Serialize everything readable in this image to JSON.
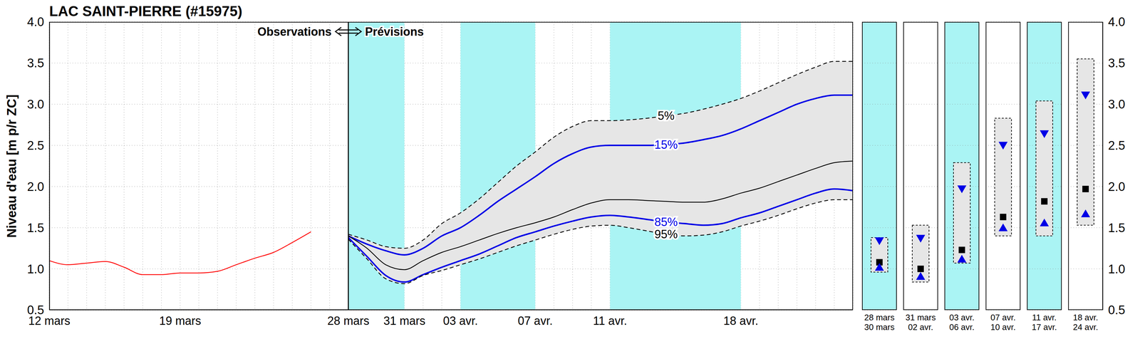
{
  "chart_data": [
    {
      "type": "line",
      "title": "LAC SAINT-PIERRE (#15975)",
      "ylabel": "Niveau d'eau [m p/r ZC]",
      "categories": [
        "12 mars",
        null,
        null,
        null,
        null,
        null,
        null,
        "19 mars",
        null,
        null,
        null,
        null,
        null,
        null,
        null,
        null,
        "28 mars",
        null,
        null,
        "31 mars",
        null,
        null,
        "03 avr.",
        null,
        null,
        null,
        "07 avr.",
        null,
        null,
        null,
        "11 avr.",
        null,
        null,
        null,
        null,
        null,
        null,
        "18 avr.",
        null,
        null,
        null,
        null,
        null,
        null
      ],
      "series": [
        {
          "color": "#ff0000",
          "line_style": "solid",
          "values": [
            1.1,
            1.05,
            1.07,
            1.09,
            1.02,
            0.93,
            0.93,
            0.95,
            0.95,
            0.97,
            1.05,
            1.13,
            1.2,
            1.32,
            1.45,
            null,
            null,
            null,
            null,
            null,
            null,
            null,
            null,
            null,
            null,
            null,
            null,
            null,
            null,
            null,
            null,
            null,
            null,
            null,
            null,
            null,
            null,
            null,
            null,
            null,
            null,
            null,
            null,
            null
          ]
        },
        {
          "name": "5%",
          "color": "#000000",
          "line_style": "dashed",
          "values": [
            null,
            null,
            null,
            null,
            null,
            null,
            null,
            null,
            null,
            null,
            null,
            null,
            null,
            null,
            null,
            null,
            1.42,
            1.35,
            1.27,
            1.25,
            1.35,
            1.55,
            1.68,
            1.85,
            2.05,
            2.25,
            2.42,
            2.6,
            2.73,
            2.8,
            2.8,
            2.81,
            2.83,
            2.86,
            2.89,
            2.94,
            3.0,
            3.07,
            3.16,
            3.26,
            3.36,
            3.45,
            3.52,
            3.52
          ]
        },
        {
          "name": "15%",
          "color": "#0000e6",
          "line_style": "solid",
          "values": [
            null,
            null,
            null,
            null,
            null,
            null,
            null,
            null,
            null,
            null,
            null,
            null,
            null,
            null,
            null,
            null,
            1.4,
            1.3,
            1.22,
            1.17,
            1.25,
            1.4,
            1.5,
            1.65,
            1.82,
            1.97,
            2.12,
            2.28,
            2.4,
            2.48,
            2.5,
            2.5,
            2.5,
            2.51,
            2.53,
            2.57,
            2.62,
            2.7,
            2.8,
            2.9,
            3.0,
            3.07,
            3.11,
            3.11
          ]
        },
        {
          "color": "#000000",
          "line_style": "solid",
          "values": [
            null,
            null,
            null,
            null,
            null,
            null,
            null,
            null,
            null,
            null,
            null,
            null,
            null,
            null,
            null,
            null,
            1.4,
            1.25,
            1.05,
            0.99,
            1.1,
            1.2,
            1.27,
            1.35,
            1.43,
            1.5,
            1.56,
            1.63,
            1.72,
            1.8,
            1.84,
            1.84,
            1.83,
            1.82,
            1.81,
            1.81,
            1.85,
            1.92,
            1.98,
            2.06,
            2.14,
            2.22,
            2.29,
            2.31
          ]
        },
        {
          "name": "85%",
          "color": "#0000e6",
          "line_style": "solid",
          "values": [
            null,
            null,
            null,
            null,
            null,
            null,
            null,
            null,
            null,
            null,
            null,
            null,
            null,
            null,
            null,
            null,
            1.38,
            1.15,
            0.92,
            0.84,
            0.93,
            1.02,
            1.1,
            1.18,
            1.28,
            1.38,
            1.45,
            1.52,
            1.58,
            1.63,
            1.65,
            1.63,
            1.6,
            1.57,
            1.55,
            1.53,
            1.55,
            1.62,
            1.68,
            1.76,
            1.84,
            1.92,
            1.97,
            1.95
          ]
        },
        {
          "name": "95%",
          "color": "#000000",
          "line_style": "dashed",
          "values": [
            null,
            null,
            null,
            null,
            null,
            null,
            null,
            null,
            null,
            null,
            null,
            null,
            null,
            null,
            null,
            null,
            1.36,
            1.12,
            0.88,
            0.82,
            0.92,
            0.98,
            1.05,
            1.12,
            1.2,
            1.28,
            1.35,
            1.42,
            1.48,
            1.52,
            1.53,
            1.5,
            1.46,
            1.42,
            1.4,
            1.41,
            1.45,
            1.52,
            1.58,
            1.65,
            1.73,
            1.8,
            1.84,
            1.84
          ]
        }
      ],
      "bands": [
        {
          "x1": "28 mars",
          "x2": "31 mars"
        },
        {
          "x1": "03 avr.",
          "x2": "07 avr."
        },
        {
          "x1": "11 avr.",
          "x2": "18 avr."
        }
      ],
      "divider": {
        "x": "28 mars",
        "labels": [
          "Observations",
          "Prévisions"
        ]
      },
      "ylim": [
        0.5,
        4
      ],
      "yticks": [
        0.5,
        {
          "value": 1,
          "label": "1.0"
        },
        1.5,
        {
          "value": 2,
          "label": "2.0"
        },
        2.5,
        {
          "value": 3,
          "label": "3.0"
        },
        3.5,
        {
          "value": 4,
          "label": "4.0"
        }
      ],
      "grid": true
    },
    {
      "type": "range",
      "categories": [
        "28 mars\n30 mars",
        "31 mars\n02 avr.",
        "03 avr.\n06 avr.",
        "07 avr.\n10 avr.",
        "11 avr.\n17 avr.",
        "18 avr.\n24 avr."
      ],
      "series": [
        {
          "type": "range",
          "color": "#e6e6e6",
          "line_style": "dashed",
          "values": [
            [
              0.96,
              1.38
            ],
            [
              0.84,
              1.53
            ],
            [
              1.07,
              2.29
            ],
            [
              1.4,
              2.83
            ],
            [
              1.4,
              3.04
            ],
            [
              1.53,
              3.55
            ]
          ]
        },
        {
          "type": "scatter",
          "marker": "triangle-down",
          "color": "#0000e6",
          "values": [
            1.34,
            1.37,
            1.97,
            2.5,
            2.64,
            3.11
          ]
        },
        {
          "type": "scatter",
          "marker": "square",
          "color": "#000000",
          "values": [
            1.08,
            1.0,
            1.23,
            1.63,
            1.82,
            1.97
          ]
        },
        {
          "type": "scatter",
          "marker": "triangle-up",
          "color": "#0000e6",
          "values": [
            1.02,
            0.91,
            1.12,
            1.5,
            1.56,
            1.67
          ]
        }
      ],
      "ylim": [
        0.5,
        4
      ],
      "yticks": [
        0.5,
        {
          "value": 1,
          "label": "1.0"
        },
        1.5,
        {
          "value": 2,
          "label": "2.0"
        },
        2.5,
        {
          "value": 3,
          "label": "3.0"
        },
        3.5,
        {
          "value": 4,
          "label": "4.0"
        }
      ],
      "grid": true
    }
  ]
}
